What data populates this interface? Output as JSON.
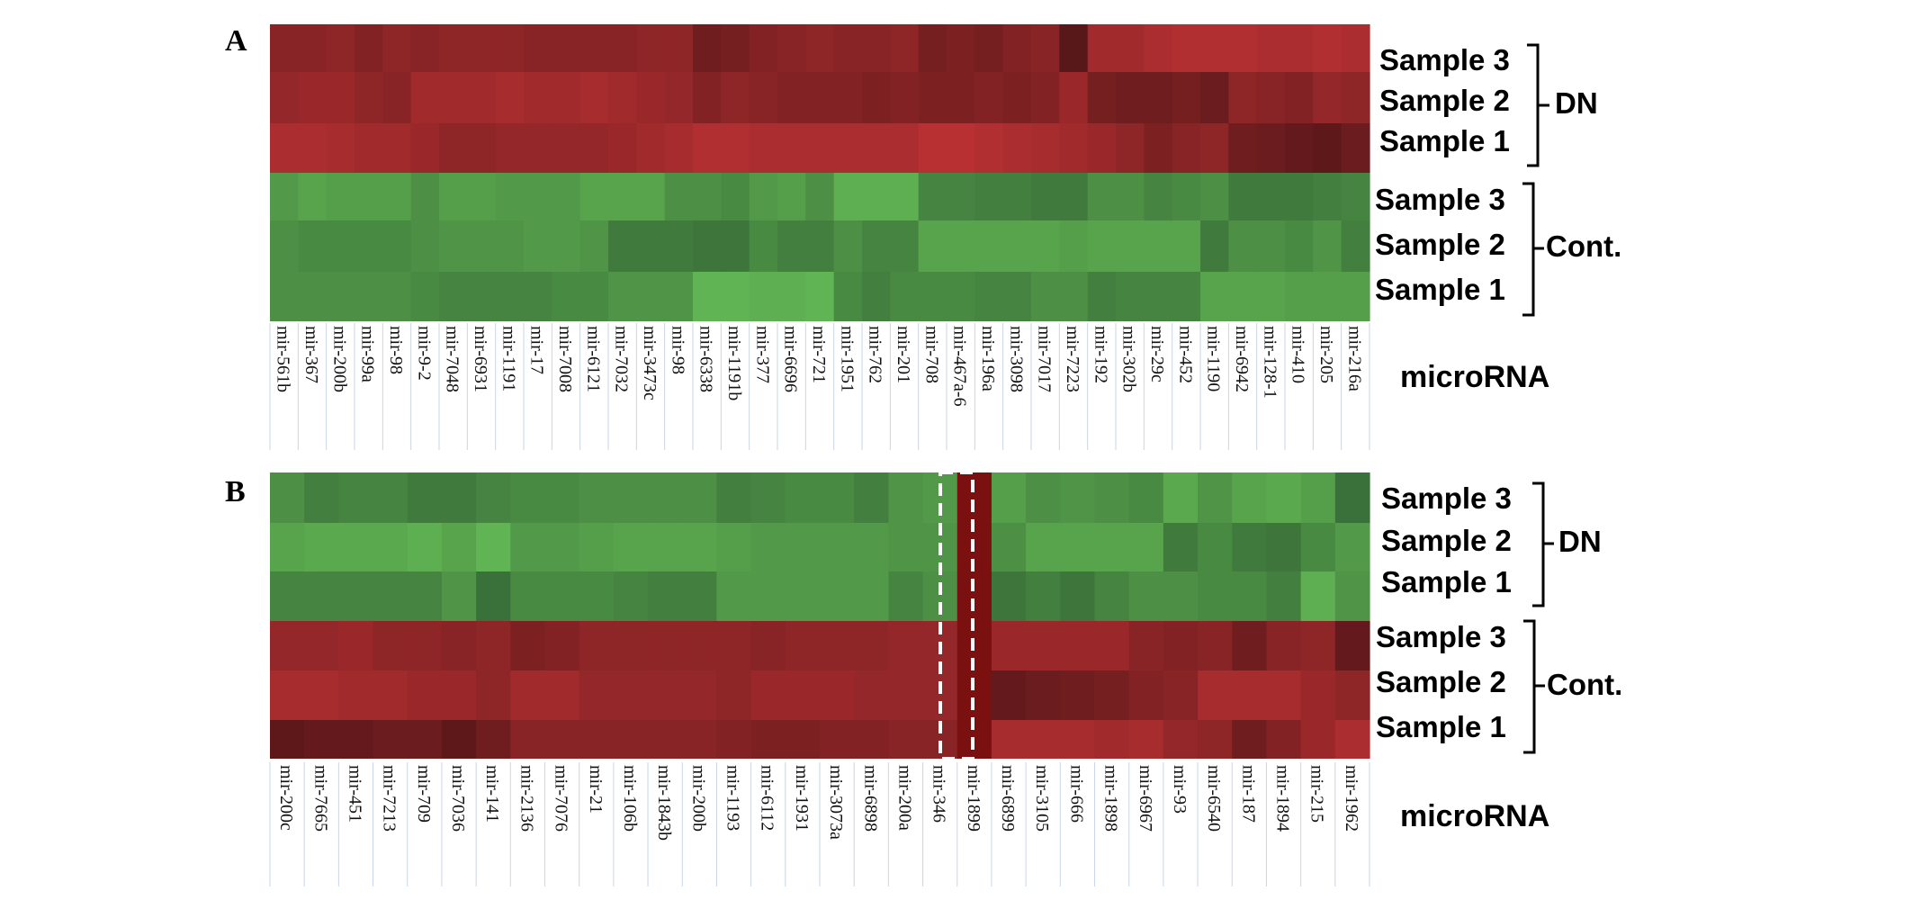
{
  "chart_data": [
    {
      "type": "heatmap",
      "panel": "A",
      "x_title": "microRNA",
      "categories": [
        "mir-561b",
        "mir-367",
        "mir-200b",
        "mir-99a",
        "mir-98",
        "mir-9-2",
        "mir-7048",
        "mir-6931",
        "mir-1191",
        "mir-17",
        "mir-7008",
        "mir-6121",
        "mir-7032",
        "mir-3473c",
        "mir-98",
        "mir-6338",
        "mir-1191b",
        "mir-377",
        "mir-6696",
        "mir-721",
        "mir-1951",
        "mir-762",
        "mir-201",
        "mir-708",
        "mir-467a-6",
        "mir-196a",
        "mir-3098",
        "mir-7017",
        "mir-7223",
        "mir-192",
        "mir-302b",
        "mir-29c",
        "mir-452",
        "mir-1190",
        "mir-6942",
        "mir-128-1",
        "mir-410",
        "mir-205",
        "mir-216a"
      ],
      "groups": [
        {
          "label": "DN",
          "rows": [
            {
              "label": "Sample 3",
              "values": [
                -0.55,
                -0.55,
                -0.6,
                -0.5,
                -0.6,
                -0.55,
                -0.6,
                -0.6,
                -0.6,
                -0.55,
                -0.55,
                -0.55,
                -0.55,
                -0.6,
                -0.6,
                -0.35,
                -0.4,
                -0.5,
                -0.55,
                -0.6,
                -0.55,
                -0.55,
                -0.6,
                -0.4,
                -0.45,
                -0.4,
                -0.5,
                -0.55,
                -0.15,
                -0.75,
                -0.75,
                -0.85,
                -0.9,
                -0.9,
                -0.9,
                -0.85,
                -0.85,
                -0.9,
                -0.85
              ]
            },
            {
              "label": "Sample 2",
              "values": [
                -0.65,
                -0.7,
                -0.7,
                -0.6,
                -0.55,
                -0.75,
                -0.75,
                -0.75,
                -0.8,
                -0.75,
                -0.75,
                -0.8,
                -0.75,
                -0.7,
                -0.65,
                -0.5,
                -0.6,
                -0.55,
                -0.5,
                -0.5,
                -0.5,
                -0.45,
                -0.5,
                -0.45,
                -0.45,
                -0.5,
                -0.45,
                -0.5,
                -0.7,
                -0.4,
                -0.35,
                -0.35,
                -0.4,
                -0.3,
                -0.6,
                -0.55,
                -0.5,
                -0.65,
                -0.6
              ]
            },
            {
              "label": "Sample 1",
              "values": [
                -0.85,
                -0.85,
                -0.8,
                -0.75,
                -0.75,
                -0.7,
                -0.6,
                -0.6,
                -0.65,
                -0.65,
                -0.65,
                -0.65,
                -0.7,
                -0.75,
                -0.8,
                -0.9,
                -0.9,
                -0.85,
                -0.85,
                -0.85,
                -0.85,
                -0.85,
                -0.85,
                -0.95,
                -0.95,
                -0.9,
                -0.85,
                -0.8,
                -0.75,
                -0.7,
                -0.6,
                -0.45,
                -0.55,
                -0.6,
                -0.35,
                -0.3,
                -0.25,
                -0.2,
                -0.3
              ]
            }
          ]
        },
        {
          "label": "Cont.",
          "rows": [
            {
              "label": "Sample 3",
              "values": [
                0.7,
                0.8,
                0.75,
                0.75,
                0.75,
                0.6,
                0.75,
                0.75,
                0.7,
                0.7,
                0.7,
                0.8,
                0.8,
                0.8,
                0.6,
                0.6,
                0.55,
                0.7,
                0.75,
                0.6,
                0.9,
                0.9,
                0.9,
                0.5,
                0.5,
                0.45,
                0.45,
                0.4,
                0.4,
                0.6,
                0.6,
                0.5,
                0.55,
                0.6,
                0.4,
                0.4,
                0.4,
                0.45,
                0.5
              ]
            },
            {
              "label": "Sample 2",
              "values": [
                0.6,
                0.55,
                0.55,
                0.55,
                0.55,
                0.6,
                0.65,
                0.65,
                0.65,
                0.7,
                0.7,
                0.65,
                0.4,
                0.4,
                0.4,
                0.35,
                0.35,
                0.55,
                0.45,
                0.45,
                0.6,
                0.5,
                0.5,
                0.8,
                0.8,
                0.8,
                0.8,
                0.8,
                0.75,
                0.8,
                0.8,
                0.8,
                0.8,
                0.4,
                0.6,
                0.6,
                0.55,
                0.65,
                0.45
              ]
            },
            {
              "label": "Sample 1",
              "values": [
                0.6,
                0.6,
                0.6,
                0.6,
                0.6,
                0.55,
                0.5,
                0.5,
                0.5,
                0.5,
                0.55,
                0.55,
                0.65,
                0.65,
                0.65,
                0.95,
                0.95,
                0.9,
                0.9,
                0.95,
                0.55,
                0.45,
                0.55,
                0.55,
                0.55,
                0.5,
                0.5,
                0.6,
                0.6,
                0.45,
                0.5,
                0.5,
                0.5,
                0.8,
                0.8,
                0.8,
                0.75,
                0.75,
                0.75
              ]
            }
          ]
        }
      ]
    },
    {
      "type": "heatmap",
      "panel": "B",
      "x_title": "microRNA",
      "categories": [
        "mir-200c",
        "mir-7665",
        "mir-451",
        "mir-7213",
        "mir-709",
        "mir-7036",
        "mir-141",
        "mir-2136",
        "mir-7076",
        "mir-21",
        "mir-106b",
        "mir-1843b",
        "mir-200b",
        "mir-1193",
        "mir-6112",
        "mir-1931",
        "mir-3073a",
        "mir-6898",
        "mir-200a",
        "mir-346",
        "mir-1899",
        "mir-6899",
        "mir-3105",
        "mir-666",
        "mir-1898",
        "mir-6967",
        "mir-93",
        "mir-6540",
        "mir-187",
        "mir-1894",
        "mir-215",
        "mir-1962"
      ],
      "groups": [
        {
          "label": "DN",
          "rows": [
            {
              "label": "Sample 3",
              "values": [
                0.6,
                0.45,
                0.5,
                0.5,
                0.4,
                0.4,
                0.5,
                0.55,
                0.55,
                0.6,
                0.6,
                0.6,
                0.6,
                0.45,
                0.5,
                0.55,
                0.55,
                0.45,
                0.65,
                0.7,
                null,
                0.75,
                0.6,
                0.65,
                0.6,
                0.55,
                0.85,
                0.65,
                0.8,
                0.85,
                0.75,
                0.3
              ]
            },
            {
              "label": "Sample 2",
              "values": [
                0.8,
                0.85,
                0.85,
                0.85,
                0.9,
                0.8,
                0.95,
                0.7,
                0.7,
                0.75,
                0.8,
                0.8,
                0.8,
                0.75,
                0.7,
                0.7,
                0.7,
                0.7,
                0.65,
                0.65,
                null,
                0.6,
                0.8,
                0.8,
                0.8,
                0.8,
                0.4,
                0.55,
                0.4,
                0.35,
                0.55,
                0.7
              ]
            },
            {
              "label": "Sample 1",
              "values": [
                0.5,
                0.5,
                0.5,
                0.5,
                0.5,
                0.65,
                0.3,
                0.55,
                0.55,
                0.55,
                0.5,
                0.45,
                0.45,
                0.7,
                0.7,
                0.7,
                0.7,
                0.7,
                0.5,
                0.6,
                null,
                0.35,
                0.45,
                0.35,
                0.5,
                0.6,
                0.6,
                0.55,
                0.55,
                0.45,
                0.9,
                0.65
              ]
            }
          ]
        },
        {
          "label": "Cont.",
          "rows": [
            {
              "label": "Sample 3",
              "values": [
                -0.65,
                -0.65,
                -0.7,
                -0.6,
                -0.6,
                -0.55,
                -0.6,
                -0.45,
                -0.5,
                -0.6,
                -0.6,
                -0.6,
                -0.6,
                -0.6,
                -0.55,
                -0.6,
                -0.6,
                -0.6,
                -0.65,
                -0.65,
                null,
                -0.7,
                -0.7,
                -0.7,
                -0.7,
                -0.55,
                -0.5,
                -0.55,
                -0.35,
                -0.55,
                -0.6,
                -0.25
              ]
            },
            {
              "label": "Sample 2",
              "values": [
                -0.8,
                -0.8,
                -0.75,
                -0.75,
                -0.7,
                -0.7,
                -0.6,
                -0.75,
                -0.75,
                -0.65,
                -0.65,
                -0.65,
                -0.65,
                -0.6,
                -0.7,
                -0.7,
                -0.7,
                -0.65,
                -0.65,
                -0.65,
                null,
                -0.25,
                -0.3,
                -0.35,
                -0.4,
                -0.5,
                -0.55,
                -0.8,
                -0.8,
                -0.8,
                -0.7,
                -0.6
              ]
            },
            {
              "label": "Sample 1",
              "values": [
                -0.2,
                -0.25,
                -0.25,
                -0.3,
                -0.3,
                -0.2,
                -0.35,
                -0.55,
                -0.55,
                -0.55,
                -0.55,
                -0.55,
                -0.55,
                -0.5,
                -0.45,
                -0.45,
                -0.5,
                -0.5,
                -0.55,
                -0.55,
                null,
                -0.8,
                -0.8,
                -0.8,
                -0.75,
                -0.8,
                -0.65,
                -0.6,
                -0.35,
                -0.5,
                -0.7,
                -0.85
              ]
            }
          ]
        }
      ]
    }
  ]
}
